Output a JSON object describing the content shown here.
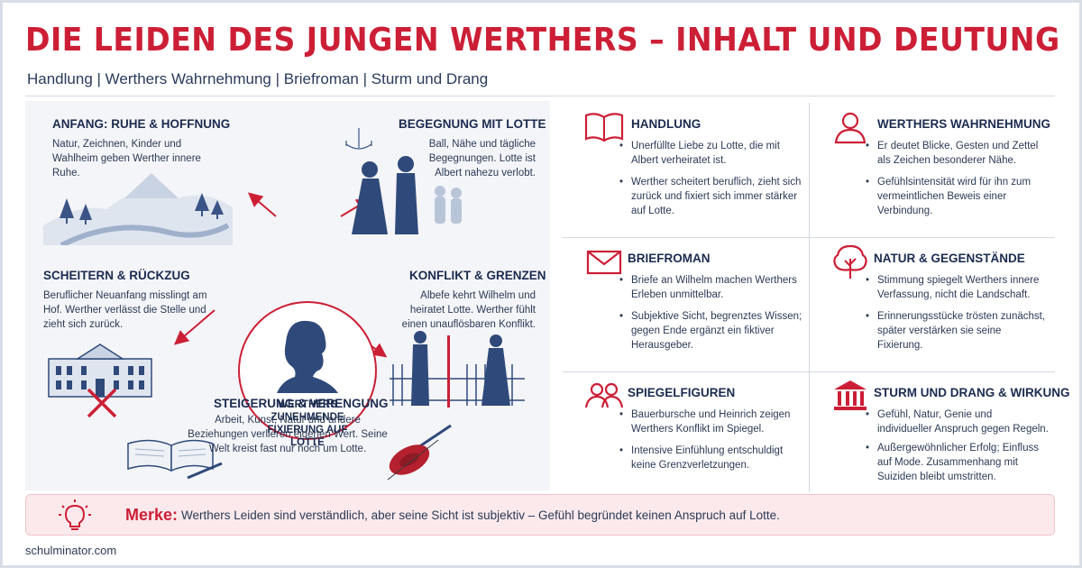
{
  "header": {
    "title": "DIE LEIDEN DES JUNGEN WERTHERS – INHALT UND DEUTUNG",
    "subtitle": "Handlung | Werthers Wahrnehmung | Briefroman | Sturm und Drang"
  },
  "diagram": {
    "center": "WERTHERS ZUNEHMENDE FIXIERUNG AUF LOTTE",
    "nodes": {
      "anfang": {
        "title": "ANFANG: RUHE & HOFFNUNG",
        "text": "Natur, Zeichnen, Kinder und Wahlheim geben Werther innere Ruhe."
      },
      "begegnung": {
        "title": "BEGEGNUNG MIT LOTTE",
        "text": "Ball, Nähe und tägliche Begegnungen. Lotte ist Albert nahezu verlobt."
      },
      "scheitern": {
        "title": "SCHEITERN & RÜCKZUG",
        "text": "Beruflicher Neuanfang misslingt am Hof. Werther verlässt die Stelle und zieht sich zurück."
      },
      "konflikt": {
        "title": "KONFLIKT & GRENZEN",
        "text": "Albefe kehrt Wilhelm und heiratet Lotte. Werther fühlt einen unauflösbaren Konflikt."
      },
      "steigerung": {
        "title": "STEIGERUNG & VERENGUNG",
        "text": "Arbeit, Kunst, Natur und andere Beziehungen verlieren eigenen Wert. Seine Welt kreist fast nur noch um Lotte."
      }
    }
  },
  "cards": [
    {
      "title": "HANDLUNG",
      "icon": "book-icon",
      "bullets": [
        "Unerfüllte Liebe zu Lotte, die mit Albert verheiratet ist.",
        "Werther scheitert beruflich, zieht sich zurück und fixiert sich immer stärker auf Lotte."
      ]
    },
    {
      "title": "WERTHERS WAHRNEHMUNG",
      "icon": "person-icon",
      "bullets": [
        "Er deutet Blicke, Gesten und Zettel als Zeichen besonderer Nähe.",
        "Gefühlsintensität wird für ihn zum vermeintlichen Beweis einer Verbindung."
      ]
    },
    {
      "title": "BRIEFROMAN",
      "icon": "envelope-icon",
      "bullets": [
        "Briefe an Wilhelm machen Werthers Erleben unmittelbar.",
        "Subjektive Sicht, begrenztes Wissen; gegen Ende ergänzt ein fiktiver Herausgeber."
      ]
    },
    {
      "title": "NATUR & GEGENSTÄNDE",
      "icon": "tree-icon",
      "bullets": [
        "Stimmung spiegelt Werthers innere Verfassung, nicht die Landschaft.",
        "Erinnerungsstücke trösten zunächst, später verstärken sie seine Fixierung."
      ]
    },
    {
      "title": "SPIEGELFIGUREN",
      "icon": "people-icon",
      "bullets": [
        "Bauerbursche und Heinrich zeigen Werthers Konflikt im Spiegel.",
        "Intensive Einfühlung entschuldigt keine Grenzverletzungen."
      ]
    },
    {
      "title": "STURM UND DRANG & WIRKUNG",
      "icon": "temple-icon",
      "bullets": [
        "Gefühl, Natur, Genie und individueller Anspruch gegen Regeln.",
        "Außergewöhnlicher Erfolg; Einfluss auf Mode. Zusammenhang mit Suiziden bleibt umstritten."
      ]
    }
  ],
  "merke": {
    "label": "Merke:",
    "text": "Werthers Leiden sind verständlich, aber seine Sicht ist subjektiv – Gefühl begründet keinen Anspruch auf Lotte."
  },
  "footer": "schulminator.com",
  "colors": {
    "accent": "#cc1f36",
    "navy": "#1b2b4f",
    "illustration": "#2f4a7a"
  }
}
